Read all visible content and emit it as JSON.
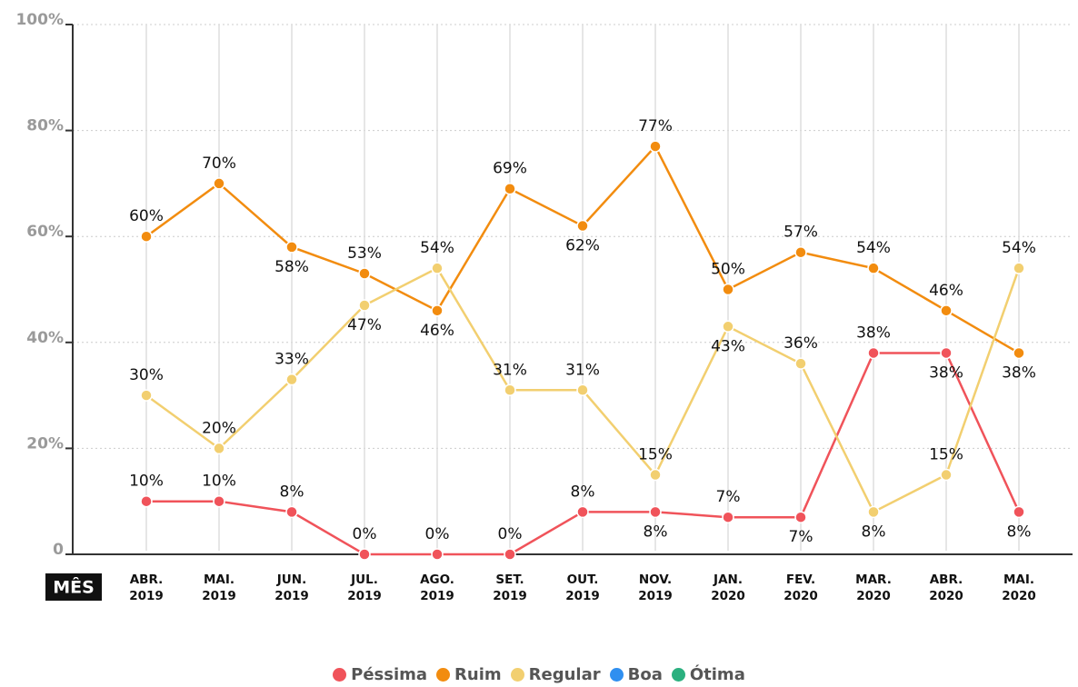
{
  "chart_data": {
    "type": "line",
    "x_label": "MÊS",
    "categories": [
      "ABR. 2019",
      "MAI. 2019",
      "JUN. 2019",
      "JUL. 2019",
      "AGO. 2019",
      "SET. 2019",
      "OUT. 2019",
      "NOV. 2019",
      "JAN. 2020",
      "FEV. 2020",
      "MAR. 2020",
      "ABR. 2020",
      "MAI. 2020"
    ],
    "ylim": [
      0,
      100
    ],
    "yticks": [
      0,
      {
        "value": 20,
        "label": "20%"
      },
      {
        "value": 40,
        "label": "40%"
      },
      {
        "value": 60,
        "label": "60%"
      },
      {
        "value": 80,
        "label": "80%"
      },
      {
        "value": 100,
        "label": "100%"
      }
    ],
    "grid": true,
    "series": [
      {
        "name": "Péssima",
        "color": "#f0535a",
        "values": [
          10,
          10,
          8,
          0,
          0,
          0,
          8,
          8,
          7,
          7,
          38,
          38,
          8
        ],
        "value_labels": [
          "10%",
          "10%",
          "8%",
          "0%",
          "0%",
          "0%",
          "8%",
          "8%",
          "7%",
          "7%",
          "38%",
          "38%",
          "8%"
        ]
      },
      {
        "name": "Ruim",
        "color": "#f28c0f",
        "values": [
          60,
          70,
          58,
          53,
          46,
          69,
          62,
          77,
          50,
          57,
          54,
          46,
          38
        ],
        "value_labels": [
          "60%",
          "70%",
          "58%",
          "53%",
          "46%",
          "69%",
          "62%",
          "77%",
          "50%",
          "57%",
          "54%",
          "46%",
          "38%"
        ]
      },
      {
        "name": "Regular",
        "color": "#f2cf70",
        "values": [
          30,
          20,
          33,
          47,
          54,
          31,
          31,
          15,
          43,
          36,
          8,
          15,
          54
        ],
        "value_labels": [
          "30%",
          "20%",
          "33%",
          "47%",
          "54%",
          "31%",
          "31%",
          "15%",
          "43%",
          "36%",
          "8%",
          "15%",
          "54%"
        ]
      },
      {
        "name": "Boa",
        "color": "#2f8ff0",
        "values": [
          null,
          null,
          null,
          null,
          null,
          null,
          null,
          null,
          null,
          null,
          null,
          null,
          null
        ]
      },
      {
        "name": "Ótima",
        "color": "#2bb07f",
        "values": [
          null,
          null,
          null,
          null,
          null,
          null,
          null,
          null,
          null,
          null,
          null,
          null,
          null
        ]
      }
    ]
  }
}
